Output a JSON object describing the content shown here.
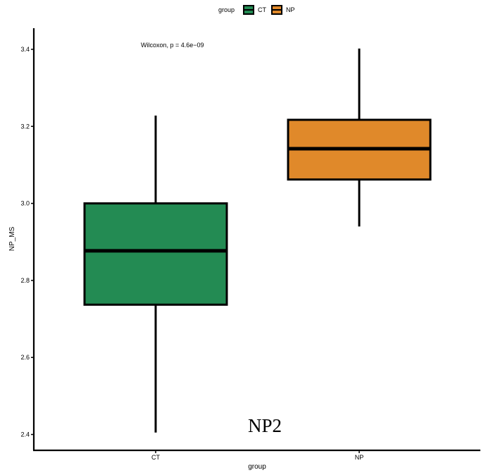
{
  "chart_data": {
    "type": "boxplot",
    "title": "",
    "xlabel": "group",
    "ylabel": "NP_MS",
    "ylim": [
      2.39,
      3.46
    ],
    "yticks": [
      2.4,
      2.6,
      2.8,
      3.0,
      3.2,
      3.4
    ],
    "ytick_labels": [
      "2.4",
      "2.6",
      "2.8",
      "3.0",
      "3.2",
      "3.4"
    ],
    "categories": [
      "CT",
      "NP"
    ],
    "legend": {
      "title": "group",
      "position": "top",
      "entries": [
        {
          "label": "CT",
          "color": "#238b53"
        },
        {
          "label": "NP",
          "color": "#e0892a"
        }
      ]
    },
    "boxes": [
      {
        "name": "CT",
        "whisker_low": 2.405,
        "q1": 2.737,
        "median": 2.877,
        "q3": 3.0,
        "whisker_high": 3.228,
        "color": "#238b53"
      },
      {
        "name": "NP",
        "whisker_low": 2.94,
        "q1": 3.062,
        "median": 3.142,
        "q3": 3.217,
        "whisker_high": 3.402,
        "color": "#e0892a"
      }
    ],
    "annotation": "Wilcoxon, p = 4.6e−09",
    "overlay_label": "NP2",
    "grid": false
  }
}
